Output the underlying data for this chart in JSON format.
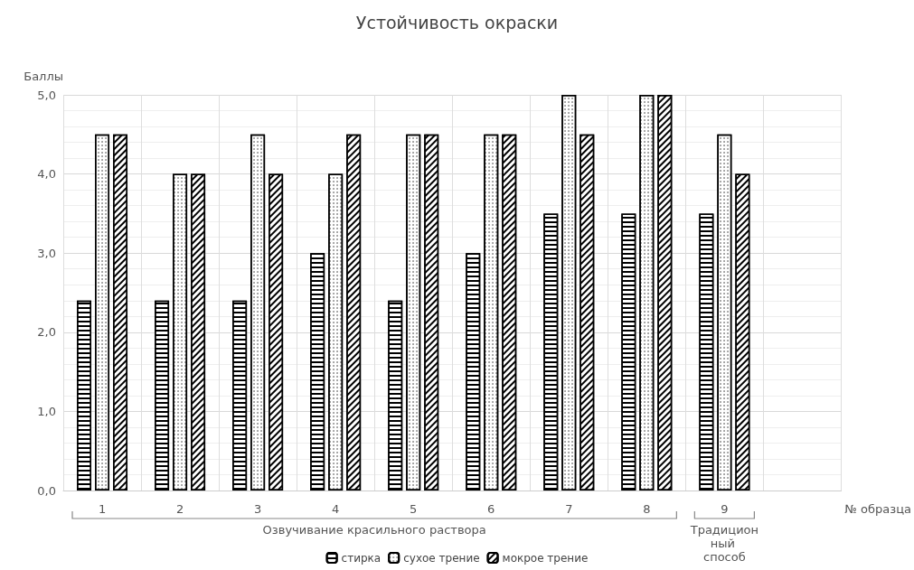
{
  "chart_data": {
    "type": "bar",
    "title": "Устойчивость окраски",
    "ylabel": "Баллы",
    "xlabel": "№ образца",
    "categories": [
      "1",
      "2",
      "3",
      "4",
      "5",
      "6",
      "7",
      "8",
      "9",
      null
    ],
    "series": [
      {
        "name": "стирка",
        "color": "#ffffff",
        "values": [
          2.4,
          2.4,
          2.4,
          3.0,
          2.4,
          3.0,
          3.5,
          3.5,
          3.5,
          null
        ]
      },
      {
        "name": "сухое трение",
        "color": "#ffffff",
        "values": [
          4.5,
          4.0,
          4.5,
          4.0,
          4.5,
          4.5,
          5.0,
          5.0,
          4.5,
          null
        ]
      },
      {
        "name": "мокрое трение",
        "color": "#ffffff",
        "values": [
          4.5,
          4.0,
          4.0,
          4.5,
          4.5,
          4.5,
          4.5,
          5.0,
          4.0,
          null
        ]
      }
    ],
    "ylim": [
      0,
      5
    ],
    "yticks": [
      {
        "value": 0,
        "label": "0,0"
      },
      {
        "value": 1,
        "label": "1,0"
      },
      {
        "value": 2,
        "label": "2,0"
      },
      {
        "value": 3,
        "label": "3,0"
      },
      {
        "value": 4,
        "label": "4,0"
      },
      {
        "value": 5,
        "label": "5,0"
      }
    ],
    "grid": true,
    "legend": "bottom",
    "annotations": [
      "Озвучивание красильного раствора",
      "Традиционный способ"
    ]
  }
}
